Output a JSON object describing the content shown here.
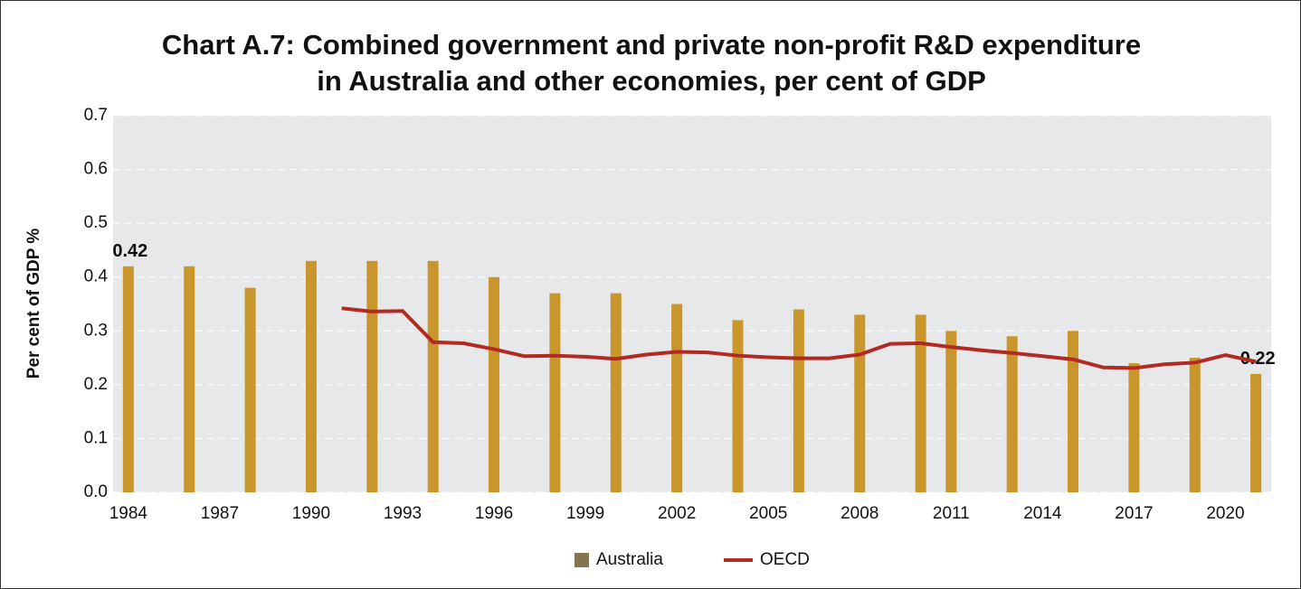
{
  "chart_data": {
    "type": "bar",
    "title": [
      "Chart A.7: Combined government and private non-profit R&D expenditure",
      "in Australia and other economies, per cent of GDP"
    ],
    "y_label": "Per cent of GDP %",
    "xlim": [
      1983.5,
      2021.5
    ],
    "xticks": [
      1984,
      1987,
      1990,
      1993,
      1996,
      1999,
      2002,
      2005,
      2008,
      2011,
      2014,
      2017,
      2020
    ],
    "ylim": [
      0,
      0.7
    ],
    "yticks": [
      {
        "value": 0,
        "label": "0.0"
      },
      0.1,
      0.2,
      0.3,
      0.4,
      0.5,
      0.6,
      0.7
    ],
    "grid": true,
    "legend": "bottom",
    "series": [
      {
        "name": "Australia",
        "type": "bar",
        "color": "#c8962b",
        "legend_color": "#857450",
        "x": [
          1984,
          1986,
          1988,
          1990,
          1992,
          1994,
          1996,
          1998,
          2000,
          2002,
          2004,
          2006,
          2008,
          2010,
          2011,
          2013,
          2015,
          2017,
          2019,
          2021
        ],
        "values": [
          0.42,
          0.42,
          0.38,
          0.43,
          0.43,
          0.43,
          0.4,
          0.37,
          0.37,
          0.35,
          0.32,
          0.34,
          0.33,
          0.33,
          0.3,
          0.29,
          0.3,
          0.24,
          0.25,
          0.22
        ],
        "labelled": [
          0,
          19
        ]
      },
      {
        "name": "OECD",
        "type": "line",
        "color": "#b22a22",
        "x": [
          1991,
          1992,
          1993,
          1994,
          1995,
          1996,
          1997,
          1998,
          1999,
          2000,
          2001,
          2002,
          2003,
          2004,
          2005,
          2006,
          2007,
          2008,
          2009,
          2010,
          2011,
          2012,
          2013,
          2014,
          2015,
          2016,
          2017,
          2018,
          2019,
          2020,
          2021
        ],
        "values": [
          0.342,
          0.336,
          0.337,
          0.279,
          0.277,
          0.266,
          0.253,
          0.254,
          0.252,
          0.248,
          0.256,
          0.261,
          0.26,
          0.254,
          0.251,
          0.249,
          0.249,
          0.256,
          0.276,
          0.277,
          0.27,
          0.264,
          0.259,
          0.253,
          0.247,
          0.232,
          0.231,
          0.238,
          0.241,
          0.255,
          0.243
        ]
      }
    ]
  }
}
